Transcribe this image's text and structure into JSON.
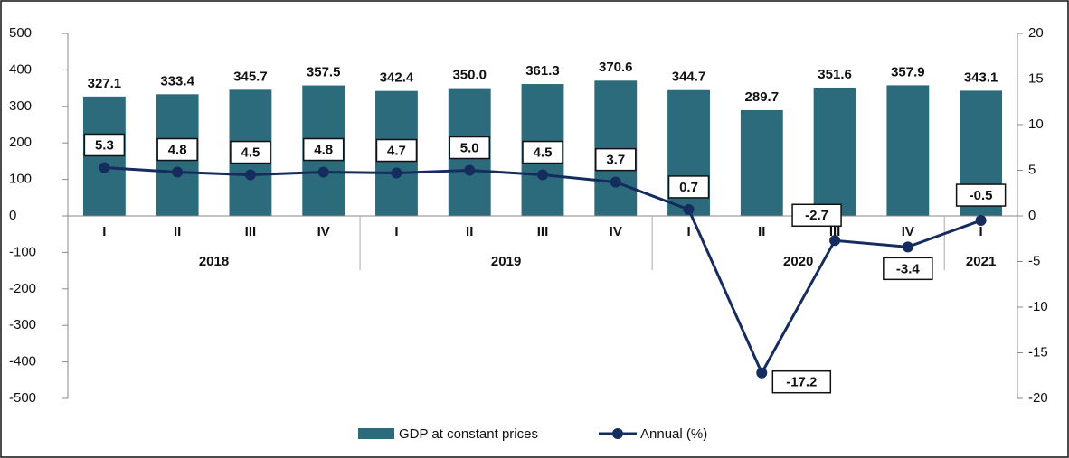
{
  "chart_data": {
    "type": "bar-line",
    "categories": [
      "I",
      "II",
      "III",
      "IV",
      "I",
      "II",
      "III",
      "IV",
      "I",
      "II",
      "III",
      "IV",
      "I"
    ],
    "category_groups": [
      {
        "label": "2018",
        "size": 4
      },
      {
        "label": "2019",
        "size": 4
      },
      {
        "label": "2020",
        "size": 4
      },
      {
        "label": "2021",
        "size": 1
      }
    ],
    "series": [
      {
        "name": "GDP at constant prices",
        "type": "bar",
        "color": "#2b6b7b",
        "values": [
          327.1,
          333.4,
          345.7,
          357.5,
          342.4,
          350.0,
          361.3,
          370.6,
          344.7,
          289.7,
          351.6,
          357.9,
          343.1
        ],
        "value_labels": [
          "327.1",
          "333.4",
          "345.7",
          "357.5",
          "342.4",
          "350.0",
          "361.3",
          "370.6",
          "344.7",
          "289.7",
          "351.6",
          "357.9",
          "343.1"
        ]
      },
      {
        "name": "Annual (%)",
        "type": "line",
        "axis": "y2",
        "color": "#152c5e",
        "values": [
          5.3,
          4.8,
          4.5,
          4.8,
          4.7,
          5.0,
          4.5,
          3.7,
          0.7,
          -17.2,
          -2.7,
          -3.4,
          -0.5
        ],
        "value_labels": [
          "5.3",
          "4.8",
          "4.5",
          "4.8",
          "4.7",
          "5.0",
          "4.5",
          "3.7",
          "0.7",
          "-17.2",
          "-2.7",
          "-3.4",
          "-0.5"
        ]
      }
    ],
    "ylim": [
      -500,
      500
    ],
    "yticks": [
      -500,
      -400,
      -300,
      -200,
      -100,
      0,
      100,
      200,
      300,
      400,
      500
    ],
    "y2lim": [
      -20,
      20
    ],
    "y2ticks": [
      -20,
      -15,
      -10,
      -5,
      0,
      5,
      10,
      15,
      20
    ],
    "legend": "bottom"
  }
}
